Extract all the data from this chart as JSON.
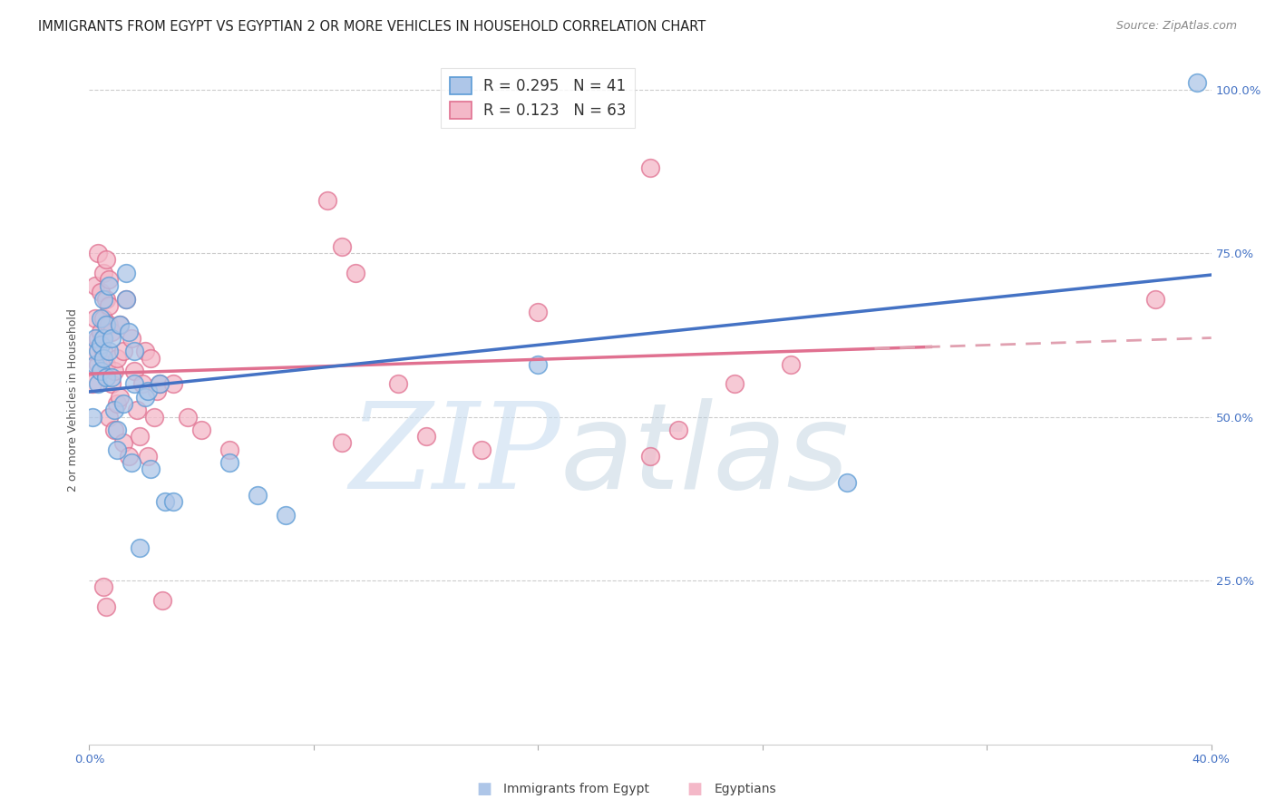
{
  "title": "IMMIGRANTS FROM EGYPT VS EGYPTIAN 2 OR MORE VEHICLES IN HOUSEHOLD CORRELATION CHART",
  "source": "Source: ZipAtlas.com",
  "ylabel": "2 or more Vehicles in Household",
  "xmin": 0.0,
  "xmax": 0.4,
  "ymin": 0.0,
  "ymax": 1.05,
  "xtick_positions": [
    0.0,
    0.08,
    0.16,
    0.24,
    0.32,
    0.4
  ],
  "xtick_labels_show": {
    "0.0": "0.0%",
    "0.40": "40.0%"
  },
  "ytick_positions": [
    0.25,
    0.5,
    0.75,
    1.0
  ],
  "ytick_labels": [
    "25.0%",
    "50.0%",
    "75.0%",
    "100.0%"
  ],
  "legend_R1": "0.295",
  "legend_N1": "41",
  "legend_R2": "0.123",
  "legend_N2": "63",
  "legend_label1": "Immigrants from Egypt",
  "legend_label2": "Egyptians",
  "color_blue_fill": "#aec6e8",
  "color_blue_edge": "#5b9bd5",
  "color_pink_fill": "#f4b8c8",
  "color_pink_edge": "#e07090",
  "line_color_blue": "#4472c4",
  "line_color_pink_solid": "#e07090",
  "line_color_pink_dash": "#e0a0b0",
  "watermark_zip": "ZIP",
  "watermark_atlas": "atlas",
  "title_fontsize": 10.5,
  "source_fontsize": 9,
  "axis_label_fontsize": 9,
  "tick_fontsize": 9.5,
  "legend_fontsize": 12,
  "blue_x": [
    0.001,
    0.002,
    0.002,
    0.003,
    0.003,
    0.004,
    0.004,
    0.004,
    0.005,
    0.005,
    0.005,
    0.006,
    0.006,
    0.007,
    0.007,
    0.008,
    0.008,
    0.009,
    0.01,
    0.01,
    0.011,
    0.012,
    0.013,
    0.013,
    0.014,
    0.015,
    0.016,
    0.016,
    0.018,
    0.02,
    0.021,
    0.022,
    0.025,
    0.027,
    0.03,
    0.05,
    0.06,
    0.07,
    0.16,
    0.27,
    0.395
  ],
  "blue_y": [
    0.5,
    0.58,
    0.62,
    0.55,
    0.6,
    0.57,
    0.61,
    0.65,
    0.59,
    0.62,
    0.68,
    0.56,
    0.64,
    0.7,
    0.6,
    0.56,
    0.62,
    0.51,
    0.48,
    0.45,
    0.64,
    0.52,
    0.68,
    0.72,
    0.63,
    0.43,
    0.55,
    0.6,
    0.3,
    0.53,
    0.54,
    0.42,
    0.55,
    0.37,
    0.37,
    0.43,
    0.38,
    0.35,
    0.58,
    0.4,
    1.01
  ],
  "pink_x": [
    0.001,
    0.001,
    0.002,
    0.002,
    0.003,
    0.003,
    0.003,
    0.004,
    0.004,
    0.005,
    0.005,
    0.005,
    0.006,
    0.006,
    0.006,
    0.007,
    0.007,
    0.007,
    0.008,
    0.008,
    0.009,
    0.009,
    0.01,
    0.01,
    0.011,
    0.011,
    0.012,
    0.012,
    0.013,
    0.014,
    0.015,
    0.016,
    0.017,
    0.018,
    0.019,
    0.02,
    0.021,
    0.022,
    0.023,
    0.024,
    0.025,
    0.026,
    0.03,
    0.035,
    0.04,
    0.05,
    0.085,
    0.09,
    0.095,
    0.11,
    0.12,
    0.14,
    0.16,
    0.2,
    0.21,
    0.23,
    0.25,
    0.005,
    0.006,
    0.007,
    0.09,
    0.2,
    0.38
  ],
  "pink_y": [
    0.6,
    0.55,
    0.65,
    0.7,
    0.62,
    0.58,
    0.75,
    0.63,
    0.69,
    0.72,
    0.65,
    0.6,
    0.68,
    0.74,
    0.58,
    0.64,
    0.71,
    0.5,
    0.55,
    0.63,
    0.48,
    0.57,
    0.52,
    0.59,
    0.64,
    0.53,
    0.6,
    0.46,
    0.68,
    0.44,
    0.62,
    0.57,
    0.51,
    0.47,
    0.55,
    0.6,
    0.44,
    0.59,
    0.5,
    0.54,
    0.55,
    0.22,
    0.55,
    0.5,
    0.48,
    0.45,
    0.83,
    0.76,
    0.72,
    0.55,
    0.47,
    0.45,
    0.66,
    0.44,
    0.48,
    0.55,
    0.58,
    0.24,
    0.21,
    0.67,
    0.46,
    0.88,
    0.68
  ]
}
